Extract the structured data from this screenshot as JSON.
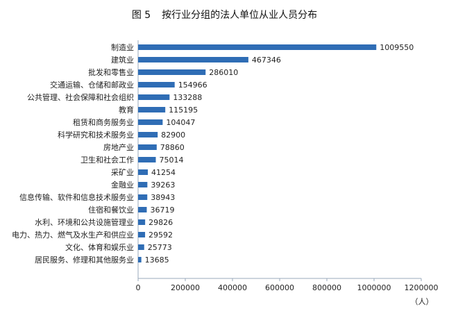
{
  "chart_data": {
    "type": "bar",
    "orientation": "horizontal",
    "title_figure": "图 5",
    "title": "按行业分组的法人单位从业人员分布",
    "xlabel": "（人）",
    "xlim": [
      0,
      1200000
    ],
    "xticks": [
      "0",
      "200000",
      "400000",
      "600000",
      "800000",
      "1000000",
      "1200000"
    ],
    "grid": false,
    "bar_color": "#2f6db5",
    "categories": [
      "制造业",
      "建筑业",
      "批发和零售业",
      "交通运输、仓储和邮政业",
      "公共管理、社会保障和社会组织",
      "教育",
      "租赁和商务服务业",
      "科学研究和技术服务业",
      "房地产业",
      "卫生和社会工作",
      "采矿业",
      "金融业",
      "信息传输、软件和信息技术服务业",
      "住宿和餐饮业",
      "水利、环境和公共设施管理业",
      "电力、热力、燃气及水生产和供应业",
      "文化、体育和娱乐业",
      "居民服务、修理和其他服务业"
    ],
    "values": [
      1009550,
      467346,
      286010,
      154966,
      133288,
      115195,
      104047,
      82900,
      78860,
      75014,
      41254,
      39263,
      38943,
      36719,
      29826,
      29592,
      25773,
      13685
    ]
  }
}
